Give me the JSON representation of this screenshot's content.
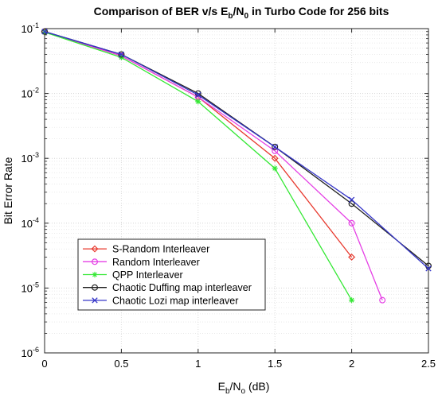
{
  "chart_data": {
    "type": "line",
    "title": "Comparison of BER v/s E_b/N_0 in Turbo Code for 256 bits",
    "title_parts": {
      "prefix": "Comparison of BER v/s E",
      "sub1": "b",
      "mid": "/N",
      "sub2": "0",
      "suffix": " in Turbo Code for 256 bits"
    },
    "xlabel": "E_b/N_o (dB)",
    "xlabel_parts": {
      "prefix": "E",
      "sub1": "b",
      "mid": "/N",
      "sub2": "o",
      "suffix": " (dB)"
    },
    "ylabel": "Bit Error Rate",
    "xlim": [
      0,
      2.5
    ],
    "ylim": [
      1e-06,
      0.1
    ],
    "yscale": "log",
    "grid": true,
    "legend_position": "bottom-left",
    "x_ticks": [
      {
        "value": 0,
        "label": "0"
      },
      {
        "value": 0.5,
        "label": "0.5"
      },
      {
        "value": 1,
        "label": "1"
      },
      {
        "value": 1.5,
        "label": "1.5"
      },
      {
        "value": 2,
        "label": "2"
      },
      {
        "value": 2.5,
        "label": "2.5"
      }
    ],
    "y_ticks": [
      {
        "exp": -6,
        "base": "10",
        "sup": "-6"
      },
      {
        "exp": -5,
        "base": "10",
        "sup": "-5"
      },
      {
        "exp": -4,
        "base": "10",
        "sup": "-4"
      },
      {
        "exp": -3,
        "base": "10",
        "sup": "-3"
      },
      {
        "exp": -2,
        "base": "10",
        "sup": "-2"
      },
      {
        "exp": -1,
        "base": "10",
        "sup": "-1"
      }
    ],
    "series": [
      {
        "name": "S-Random Interleaver",
        "color": "#e8392e",
        "marker": "diamond",
        "x": [
          0,
          0.5,
          1,
          1.5,
          2
        ],
        "y": [
          0.09,
          0.038,
          0.0088,
          0.001,
          3e-05
        ]
      },
      {
        "name": "Random Interleaver",
        "color": "#e540e5",
        "marker": "circle",
        "x": [
          0,
          0.5,
          1,
          1.5,
          2,
          2.2
        ],
        "y": [
          0.09,
          0.038,
          0.0088,
          0.0013,
          0.0001,
          6.5e-06
        ]
      },
      {
        "name": "QPP Interleaver",
        "color": "#35e835",
        "marker": "star",
        "x": [
          0,
          0.5,
          1,
          1.5,
          2
        ],
        "y": [
          0.088,
          0.036,
          0.0075,
          0.0007,
          6.5e-06
        ]
      },
      {
        "name": "Chaotic Duffing map interleaver",
        "color": "#202020",
        "marker": "circle",
        "x": [
          0,
          0.5,
          1,
          1.5,
          2,
          2.5
        ],
        "y": [
          0.09,
          0.04,
          0.01,
          0.0015,
          0.0002,
          2.2e-05
        ]
      },
      {
        "name": "Chaotic Lozi  map interleaver",
        "color": "#3535c8",
        "marker": "x",
        "x": [
          0,
          0.5,
          1,
          1.5,
          2,
          2.5
        ],
        "y": [
          0.09,
          0.04,
          0.0095,
          0.0015,
          0.00023,
          2e-05
        ]
      }
    ]
  }
}
